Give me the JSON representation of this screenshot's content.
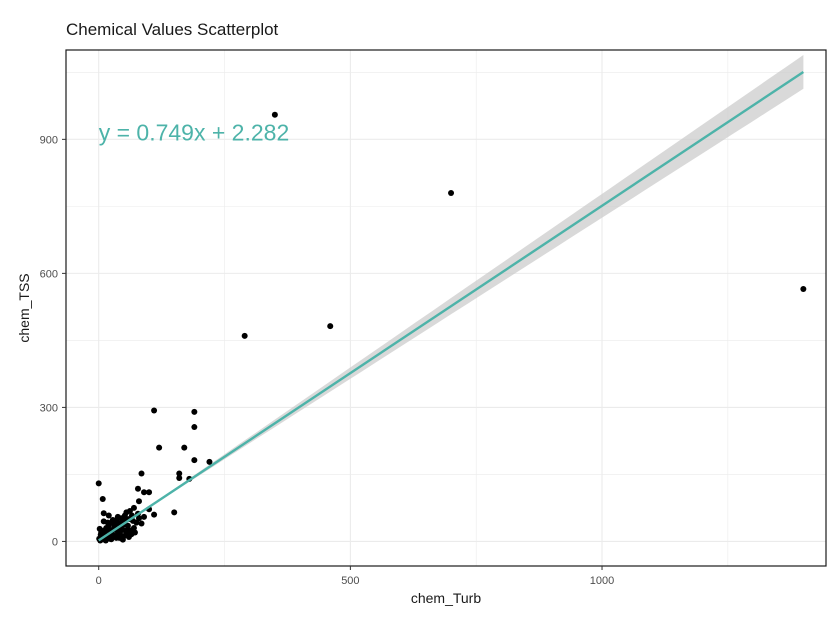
{
  "chart_data": {
    "type": "scatter",
    "title": "Chemical Values Scatterplot",
    "xlabel": "chem_Turb",
    "ylabel": "chem_TSS",
    "xlim": [
      -65,
      1445
    ],
    "ylim": [
      -55,
      1100
    ],
    "x_ticks": [
      0,
      500,
      1000
    ],
    "x_tick_labels": [
      "0",
      "500",
      "1000"
    ],
    "y_ticks": [
      0,
      300,
      600,
      900
    ],
    "y_tick_labels": [
      "0",
      "300",
      "600",
      "900"
    ],
    "grid": true,
    "legend": "none",
    "equation": "y = 0.749x + 2.282",
    "fit": {
      "slope": 0.749,
      "intercept": 2.282,
      "x_range": [
        0,
        1400
      ]
    },
    "series": [
      {
        "points": [
          [
            350,
            955
          ],
          [
            700,
            780
          ],
          [
            1400,
            565
          ],
          [
            460,
            482
          ],
          [
            290,
            460
          ],
          [
            110,
            293
          ],
          [
            190,
            290
          ],
          [
            190,
            256
          ],
          [
            120,
            210
          ],
          [
            170,
            210
          ],
          [
            190,
            182
          ],
          [
            220,
            178
          ],
          [
            85,
            152
          ],
          [
            160,
            152
          ],
          [
            160,
            142
          ],
          [
            180,
            140
          ],
          [
            0,
            130
          ],
          [
            78,
            118
          ],
          [
            90,
            110
          ],
          [
            100,
            110
          ],
          [
            8,
            95
          ],
          [
            80,
            90
          ],
          [
            100,
            72
          ],
          [
            150,
            65
          ],
          [
            110,
            60
          ],
          [
            10,
            63
          ],
          [
            20,
            58
          ],
          [
            55,
            65
          ],
          [
            62,
            68
          ],
          [
            70,
            75
          ],
          [
            45,
            52
          ],
          [
            35,
            48
          ],
          [
            60,
            50
          ],
          [
            10,
            45
          ],
          [
            25,
            42
          ],
          [
            40,
            40
          ],
          [
            50,
            38
          ],
          [
            58,
            35
          ],
          [
            75,
            42
          ],
          [
            68,
            46
          ],
          [
            80,
            52
          ],
          [
            15,
            30
          ],
          [
            30,
            28
          ],
          [
            22,
            24
          ],
          [
            5,
            20
          ],
          [
            12,
            18
          ],
          [
            18,
            12
          ],
          [
            28,
            15
          ],
          [
            38,
            22
          ],
          [
            42,
            18
          ],
          [
            48,
            26
          ],
          [
            32,
            34
          ],
          [
            55,
            20
          ],
          [
            65,
            16
          ],
          [
            60,
            10
          ],
          [
            50,
            12
          ],
          [
            35,
            8
          ],
          [
            25,
            5
          ],
          [
            15,
            8
          ],
          [
            8,
            5
          ],
          [
            3,
            2
          ],
          [
            2,
            28
          ],
          [
            6,
            10
          ],
          [
            20,
            35
          ],
          [
            45,
            30
          ],
          [
            70,
            30
          ],
          [
            85,
            40
          ],
          [
            90,
            55
          ],
          [
            52,
            58
          ],
          [
            38,
            55
          ],
          [
            28,
            48
          ],
          [
            18,
            42
          ],
          [
            4,
            15
          ],
          [
            12,
            25
          ],
          [
            26,
            20
          ],
          [
            33,
            12
          ],
          [
            41,
            8
          ],
          [
            48,
            4
          ],
          [
            58,
            28
          ],
          [
            64,
            24
          ],
          [
            72,
            20
          ],
          [
            78,
            62
          ],
          [
            66,
            58
          ],
          [
            30,
            40
          ],
          [
            22,
            6
          ],
          [
            14,
            2
          ],
          [
            1,
            6
          ],
          [
            36,
            26
          ],
          [
            46,
            44
          ],
          [
            54,
            48
          ]
        ]
      }
    ],
    "colors": {
      "points": "#000000",
      "fit_line": "#4db3a9",
      "band": "#cccccc",
      "grid": "#ebebeb"
    }
  }
}
